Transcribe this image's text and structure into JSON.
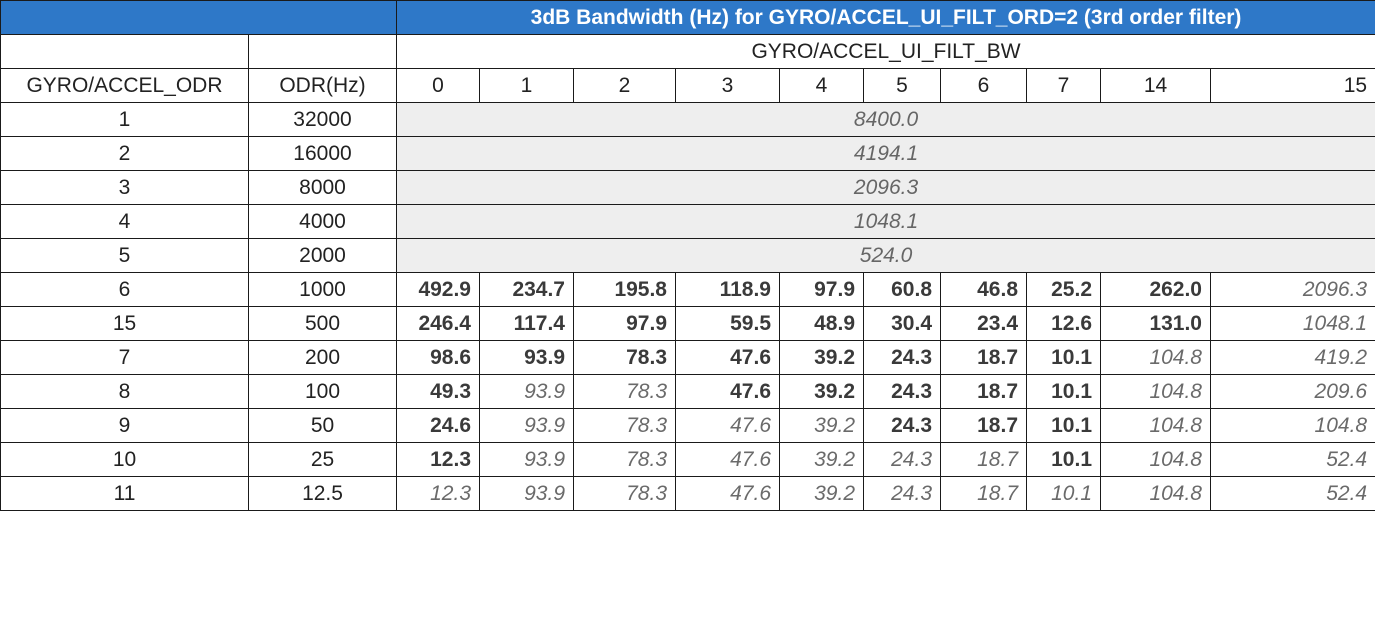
{
  "title": "3dB Bandwidth (Hz) for GYRO/ACCEL_UI_FILT_ORD=2 (3rd order filter)",
  "group_header": "GYRO/ACCEL_UI_FILT_BW",
  "col_headers": [
    "GYRO/ACCEL_ODR",
    "ODR(Hz)",
    "0",
    "1",
    "2",
    "3",
    "4",
    "5",
    "6",
    "7",
    "14",
    "15"
  ],
  "merged_rows": [
    {
      "odr": "1",
      "hz": "32000",
      "value": "8400.0"
    },
    {
      "odr": "2",
      "hz": "16000",
      "value": "4194.1"
    },
    {
      "odr": "3",
      "hz": "8000",
      "value": "2096.3"
    },
    {
      "odr": "4",
      "hz": "4000",
      "value": "1048.1"
    },
    {
      "odr": "5",
      "hz": "2000",
      "value": "524.0"
    }
  ],
  "rows": [
    {
      "odr": "6",
      "hz": "1000",
      "cells": [
        {
          "v": "492.9",
          "s": "b"
        },
        {
          "v": "234.7",
          "s": "b"
        },
        {
          "v": "195.8",
          "s": "b"
        },
        {
          "v": "118.9",
          "s": "b"
        },
        {
          "v": "97.9",
          "s": "b"
        },
        {
          "v": "60.8",
          "s": "b"
        },
        {
          "v": "46.8",
          "s": "b"
        },
        {
          "v": "25.2",
          "s": "b"
        },
        {
          "v": "262.0",
          "s": "b"
        },
        {
          "v": "2096.3",
          "s": "i"
        }
      ]
    },
    {
      "odr": "15",
      "hz": "500",
      "cells": [
        {
          "v": "246.4",
          "s": "b"
        },
        {
          "v": "117.4",
          "s": "b"
        },
        {
          "v": "97.9",
          "s": "b"
        },
        {
          "v": "59.5",
          "s": "b"
        },
        {
          "v": "48.9",
          "s": "b"
        },
        {
          "v": "30.4",
          "s": "b"
        },
        {
          "v": "23.4",
          "s": "b"
        },
        {
          "v": "12.6",
          "s": "b"
        },
        {
          "v": "131.0",
          "s": "b"
        },
        {
          "v": "1048.1",
          "s": "i"
        }
      ]
    },
    {
      "odr": "7",
      "hz": "200",
      "cells": [
        {
          "v": "98.6",
          "s": "b"
        },
        {
          "v": "93.9",
          "s": "b"
        },
        {
          "v": "78.3",
          "s": "b"
        },
        {
          "v": "47.6",
          "s": "b"
        },
        {
          "v": "39.2",
          "s": "b"
        },
        {
          "v": "24.3",
          "s": "b"
        },
        {
          "v": "18.7",
          "s": "b"
        },
        {
          "v": "10.1",
          "s": "b"
        },
        {
          "v": "104.8",
          "s": "i"
        },
        {
          "v": "419.2",
          "s": "i"
        }
      ]
    },
    {
      "odr": "8",
      "hz": "100",
      "cells": [
        {
          "v": "49.3",
          "s": "b"
        },
        {
          "v": "93.9",
          "s": "i"
        },
        {
          "v": "78.3",
          "s": "i"
        },
        {
          "v": "47.6",
          "s": "b"
        },
        {
          "v": "39.2",
          "s": "b"
        },
        {
          "v": "24.3",
          "s": "b"
        },
        {
          "v": "18.7",
          "s": "b"
        },
        {
          "v": "10.1",
          "s": "b"
        },
        {
          "v": "104.8",
          "s": "i"
        },
        {
          "v": "209.6",
          "s": "i"
        }
      ]
    },
    {
      "odr": "9",
      "hz": "50",
      "cells": [
        {
          "v": "24.6",
          "s": "b"
        },
        {
          "v": "93.9",
          "s": "i"
        },
        {
          "v": "78.3",
          "s": "i"
        },
        {
          "v": "47.6",
          "s": "i"
        },
        {
          "v": "39.2",
          "s": "i"
        },
        {
          "v": "24.3",
          "s": "b"
        },
        {
          "v": "18.7",
          "s": "b"
        },
        {
          "v": "10.1",
          "s": "b"
        },
        {
          "v": "104.8",
          "s": "i"
        },
        {
          "v": "104.8",
          "s": "i"
        }
      ]
    },
    {
      "odr": "10",
      "hz": "25",
      "cells": [
        {
          "v": "12.3",
          "s": "b"
        },
        {
          "v": "93.9",
          "s": "i"
        },
        {
          "v": "78.3",
          "s": "i"
        },
        {
          "v": "47.6",
          "s": "i"
        },
        {
          "v": "39.2",
          "s": "i"
        },
        {
          "v": "24.3",
          "s": "i"
        },
        {
          "v": "18.7",
          "s": "i"
        },
        {
          "v": "10.1",
          "s": "b"
        },
        {
          "v": "104.8",
          "s": "i"
        },
        {
          "v": "52.4",
          "s": "i"
        }
      ]
    },
    {
      "odr": "11",
      "hz": "12.5",
      "cells": [
        {
          "v": "12.3",
          "s": "i"
        },
        {
          "v": "93.9",
          "s": "i"
        },
        {
          "v": "78.3",
          "s": "i"
        },
        {
          "v": "47.6",
          "s": "i"
        },
        {
          "v": "39.2",
          "s": "i"
        },
        {
          "v": "24.3",
          "s": "i"
        },
        {
          "v": "18.7",
          "s": "i"
        },
        {
          "v": "10.1",
          "s": "i"
        },
        {
          "v": "104.8",
          "s": "i"
        },
        {
          "v": "52.4",
          "s": "i"
        }
      ]
    }
  ]
}
